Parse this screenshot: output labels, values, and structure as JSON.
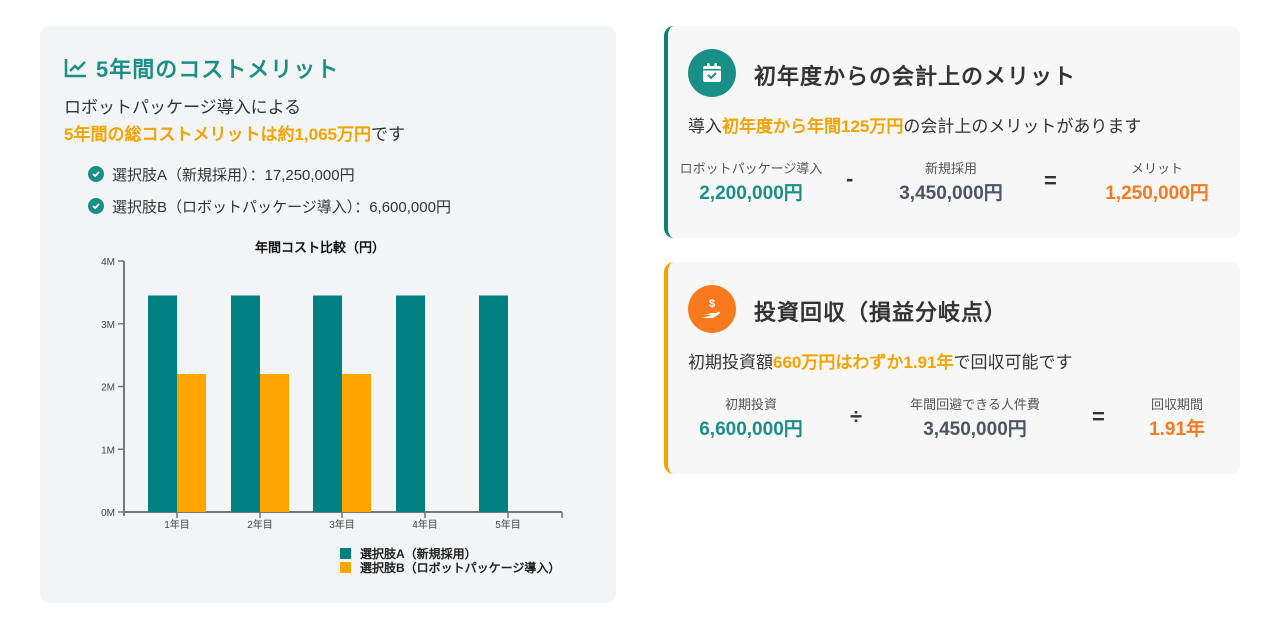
{
  "left_panel": {
    "title": "5年間のコストメリット",
    "intro_line1": "ロボットパッケージ導入による",
    "intro_highlight": "5年間の総コストメリットは約1,065万円",
    "intro_suffix": "です",
    "items": [
      {
        "label": "選択肢A（新規採用）：17,250,000円"
      },
      {
        "label": "選択肢B（ロボットパッケージ導入）：6,600,000円"
      }
    ]
  },
  "chart_data": {
    "type": "bar",
    "title": "年間コスト比較（円）",
    "categories": [
      "1年目",
      "2年目",
      "3年目",
      "4年目",
      "5年目"
    ],
    "series": [
      {
        "name": "選択肢A（新規採用）",
        "color": "#008080",
        "values": [
          3450000,
          3450000,
          3450000,
          3450000,
          3450000
        ]
      },
      {
        "name": "選択肢B（ロボットパッケージ導入）",
        "color": "#FFA500",
        "values": [
          2200000,
          2200000,
          2200000,
          0,
          0
        ]
      }
    ],
    "xlabel": "",
    "ylabel": "",
    "ylim": [
      0,
      4000000
    ],
    "yticks": [
      "0M",
      "1M",
      "2M",
      "3M",
      "4M"
    ],
    "grid": false,
    "legend_position": "bottom-right"
  },
  "card1": {
    "title": "初年度からの会計上のメリット",
    "text_prefix": "導入",
    "text_highlight": "初年度から年間125万円",
    "text_suffix": "の会計上のメリットがあります",
    "col1_label": "ロボットパッケージ導入",
    "col1_value": "2,200,000円",
    "op1": "-",
    "col2_label": "新規採用",
    "col2_value": "3,450,000円",
    "op2": "=",
    "col3_label": "メリット",
    "col3_value": "1,250,000円",
    "icon": "calendar-check-icon"
  },
  "card2": {
    "title": "投資回収（損益分岐点）",
    "text_prefix": "初期投資額",
    "text_highlight": "660万円はわずか1.91年",
    "text_suffix": "で回収可能です",
    "col1_label": "初期投資",
    "col1_value": "6,600,000円",
    "op1": "÷",
    "col2_label": "年間回避できる人件費",
    "col2_value": "3,450,000円",
    "op2": "=",
    "col3_label": "回収期間",
    "col3_value": "1.91年",
    "icon": "hand-dollar-icon"
  },
  "colors": {
    "teal": "#1a8f87",
    "bar_teal": "#008080",
    "bar_orange": "#FFA500",
    "highlight": "#f5a300",
    "result_orange": "#f97a1e"
  }
}
